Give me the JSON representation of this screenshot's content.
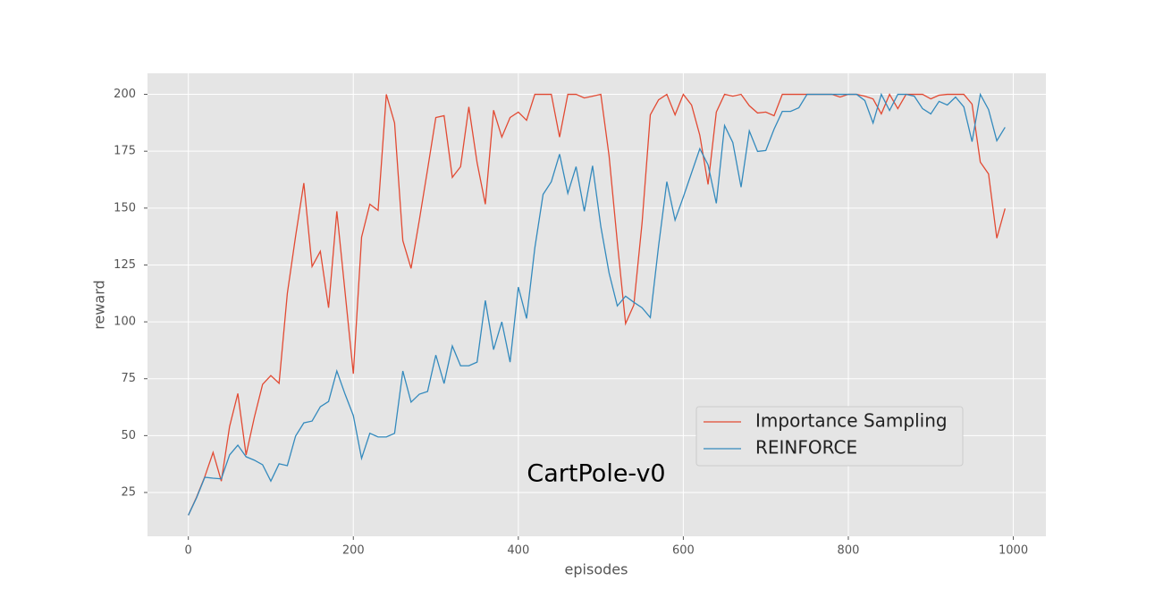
{
  "chart_data": {
    "type": "line",
    "xlabel": "episodes",
    "ylabel": "reward",
    "annotation": "CartPole-v0",
    "x": [
      0,
      10,
      20,
      30,
      40,
      50,
      60,
      70,
      80,
      90,
      100,
      110,
      120,
      130,
      140,
      150,
      160,
      170,
      180,
      190,
      200,
      210,
      220,
      230,
      240,
      250,
      260,
      270,
      280,
      290,
      300,
      310,
      320,
      330,
      340,
      350,
      360,
      370,
      380,
      390,
      400,
      410,
      420,
      430,
      440,
      450,
      460,
      470,
      480,
      490,
      500,
      510,
      520,
      530,
      540,
      550,
      560,
      570,
      580,
      590,
      600,
      610,
      620,
      630,
      640,
      650,
      660,
      670,
      680,
      690,
      700,
      710,
      720,
      730,
      740,
      750,
      760,
      770,
      780,
      790,
      800,
      810,
      820,
      830,
      840,
      850,
      860,
      870,
      880,
      890,
      900,
      910,
      920,
      930,
      940,
      950,
      960,
      970,
      980,
      990
    ],
    "series": [
      {
        "name": "Importance Sampling",
        "color": "#E24A33",
        "values": [
          15,
          23,
          32,
          42.6,
          30,
          54,
          68.5,
          41.5,
          58,
          72.5,
          76.4,
          73,
          112.5,
          137.6,
          161,
          124.3,
          131,
          106.2,
          148.6,
          113,
          77.2,
          137.2,
          151.7,
          149,
          200,
          187.4,
          135.7,
          123.5,
          144.7,
          167,
          189.8,
          190.6,
          163.5,
          168.2,
          194.5,
          170,
          151.7,
          193,
          181.2,
          189.8,
          192.2,
          188.6,
          200,
          200,
          200,
          181.2,
          200,
          200,
          198.4,
          199.2,
          200,
          173,
          135,
          99.2,
          107.4,
          143.5,
          191,
          197.6,
          200,
          191,
          200,
          195.3,
          182,
          160.4,
          192.2,
          200,
          199.2,
          200,
          195,
          191.8,
          192.2,
          190.6,
          200,
          200,
          200,
          200,
          200,
          200,
          200,
          198.8,
          200,
          200,
          199.2,
          198,
          191.4,
          200,
          193.7,
          200,
          200,
          200,
          198,
          199.6,
          200,
          200,
          200,
          195.7,
          170.2,
          165,
          136.8,
          149.8
        ]
      },
      {
        "name": "REINFORCE",
        "color": "#348ABD",
        "values": [
          15,
          22.7,
          31.7,
          31.3,
          31,
          41.5,
          45.8,
          40.7,
          39.2,
          37.2,
          30,
          37.6,
          36.8,
          49.8,
          55.6,
          56.4,
          62.7,
          65,
          78.4,
          68.2,
          58.8,
          40,
          51,
          49.4,
          49.4,
          51,
          78.4,
          64.7,
          68.2,
          69.4,
          85.4,
          72.9,
          89.4,
          80.7,
          80.7,
          82.3,
          109.4,
          87.8,
          100,
          82.3,
          115.3,
          101.5,
          132.5,
          156,
          161.6,
          173.7,
          156.5,
          168.2,
          148.6,
          168.6,
          141.9,
          121.5,
          107,
          111.3,
          108.6,
          106.2,
          101.9,
          133.3,
          161.6,
          144.7,
          154.9,
          165.5,
          176.1,
          169,
          152.1,
          186.3,
          178.8,
          159.2,
          183.9,
          174.9,
          175.3,
          184.7,
          192.5,
          192.5,
          194.1,
          200,
          200,
          200,
          200,
          200,
          200,
          200,
          197.3,
          187.4,
          200,
          192.9,
          200,
          200,
          199.2,
          193.7,
          191.4,
          196.9,
          195.3,
          198.8,
          194.5,
          179.2,
          200,
          193.3,
          179.6,
          185.5
        ]
      }
    ],
    "xlim": [
      -49.5,
      1039.5
    ],
    "ylim": [
      5.75,
      209.25
    ],
    "xticks": [
      0,
      200,
      400,
      600,
      800,
      1000
    ],
    "yticks": [
      25,
      50,
      75,
      100,
      125,
      150,
      175,
      200
    ],
    "grid": true,
    "legend": "lower right"
  }
}
